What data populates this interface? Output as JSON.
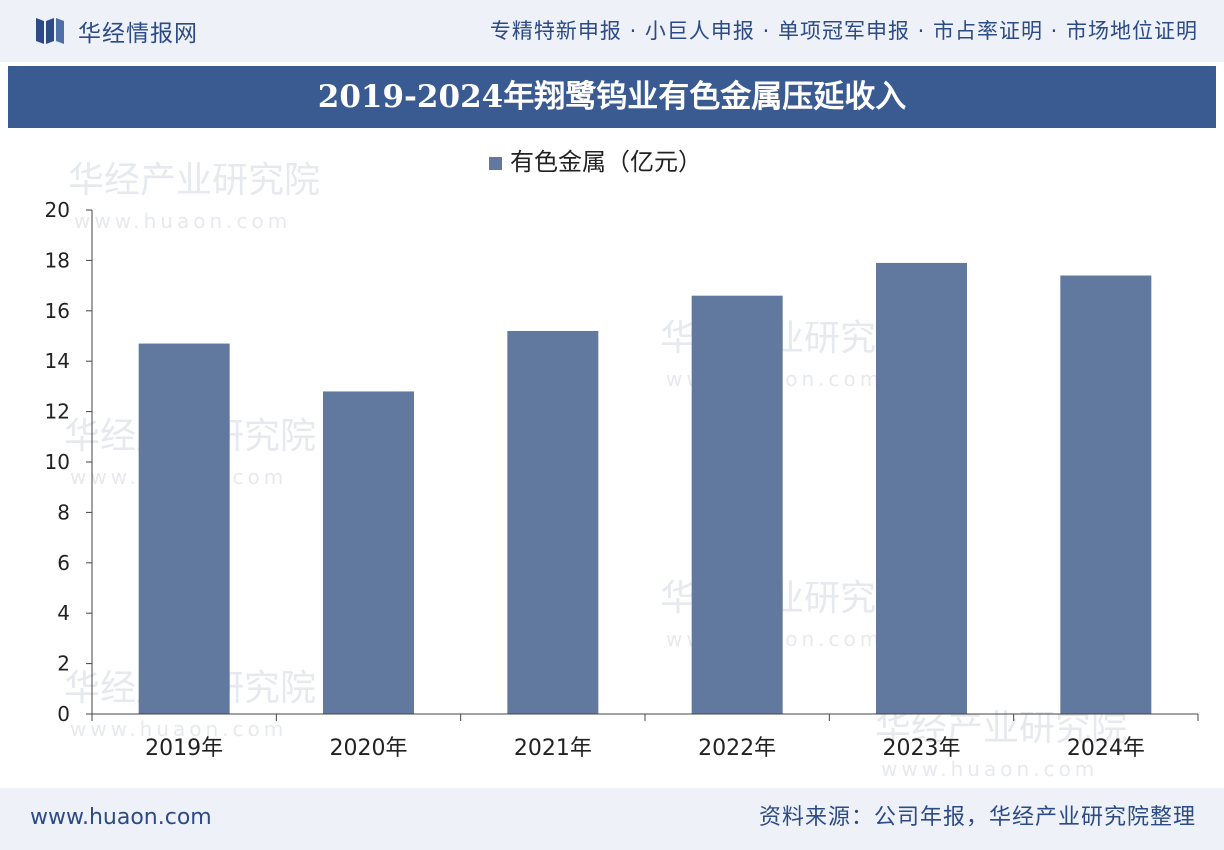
{
  "header": {
    "brand": "华经情报网",
    "services": "专精特新申报 · 小巨人申报 · 单项冠军申报 · 市占率证明 · 市场地位证明"
  },
  "title": "2019-2024年翔鹭钨业有色金属压延收入",
  "footer": {
    "website": "www.huaon.com",
    "source": "资料来源：公司年报，华经产业研究院整理"
  },
  "watermark": {
    "name": "华经产业研究院",
    "url": "www.huaon.com"
  },
  "colors": {
    "bar": "#62799f",
    "title_bg": "#3a5a92",
    "brand": "#2c4a86"
  },
  "chart_data": {
    "type": "bar",
    "title": "2019-2024年翔鹭钨业有色金属压延收入",
    "categories": [
      "2019年",
      "2020年",
      "2021年",
      "2022年",
      "2023年",
      "2024年"
    ],
    "series": [
      {
        "name": "有色金属（亿元）",
        "values": [
          14.7,
          12.8,
          15.2,
          16.6,
          17.9,
          17.4
        ]
      }
    ],
    "yticks": [
      "0",
      "2",
      "4",
      "6",
      "8",
      "10",
      "12",
      "14",
      "16",
      "18",
      "20"
    ],
    "ylim": [
      0,
      20
    ],
    "xlabel": "",
    "ylabel": "",
    "legend_position": "top-center",
    "grid": false
  }
}
